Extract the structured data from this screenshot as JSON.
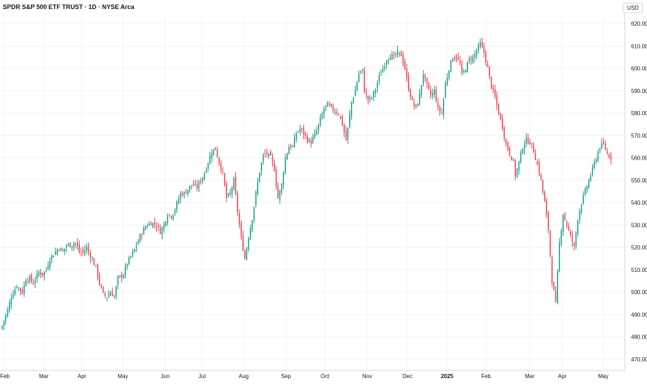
{
  "chart_data": {
    "type": "candlestick",
    "title": "SPDR S&P 500 ETF TRUST · 1D · NYSE Arca",
    "currency": "USD",
    "ylim": [
      465,
      625
    ],
    "y_ticks": [
      "620.00",
      "610.00",
      "600.00",
      "590.00",
      "580.00",
      "570.00",
      "560.00",
      "550.00",
      "540.00",
      "530.00",
      "520.00",
      "510.00",
      "500.00",
      "490.00",
      "480.00",
      "470.00"
    ],
    "x_ticks": [
      {
        "label": "Feb",
        "bold": false
      },
      {
        "label": "Mar",
        "bold": false
      },
      {
        "label": "Apr",
        "bold": false
      },
      {
        "label": "May",
        "bold": false
      },
      {
        "label": "Jun",
        "bold": false
      },
      {
        "label": "Jul",
        "bold": false
      },
      {
        "label": "Aug",
        "bold": false
      },
      {
        "label": "Sep",
        "bold": false
      },
      {
        "label": "Oct",
        "bold": false
      },
      {
        "label": "Nov",
        "bold": false
      },
      {
        "label": "Dec",
        "bold": false
      },
      {
        "label": "2025",
        "bold": true
      },
      {
        "label": "Feb",
        "bold": false
      },
      {
        "label": "Mar",
        "bold": false
      },
      {
        "label": "Apr",
        "bold": false
      },
      {
        "label": "May",
        "bold": false
      }
    ],
    "up_color": "#089981",
    "down_color": "#f23645",
    "grid": true,
    "close_path": [
      [
        0,
        485
      ],
      [
        3,
        492
      ],
      [
        5,
        498
      ],
      [
        8,
        503
      ],
      [
        11,
        500
      ],
      [
        13,
        506
      ],
      [
        15,
        506
      ],
      [
        17,
        504
      ],
      [
        20,
        509
      ],
      [
        22,
        508
      ],
      [
        24,
        510
      ],
      [
        26,
        515
      ],
      [
        29,
        518
      ],
      [
        31,
        520
      ],
      [
        33,
        518
      ],
      [
        35,
        521
      ],
      [
        37,
        521
      ],
      [
        40,
        522
      ],
      [
        42,
        518
      ],
      [
        44,
        518
      ],
      [
        46,
        520
      ],
      [
        48,
        516
      ],
      [
        51,
        511
      ],
      [
        53,
        504
      ],
      [
        55,
        499
      ],
      [
        57,
        498
      ],
      [
        59,
        500
      ],
      [
        61,
        498
      ],
      [
        63,
        506
      ],
      [
        66,
        508
      ],
      [
        68,
        513
      ],
      [
        70,
        516
      ],
      [
        72,
        519
      ],
      [
        75,
        525
      ],
      [
        77,
        528
      ],
      [
        79,
        530
      ],
      [
        81,
        531
      ],
      [
        84,
        530
      ],
      [
        86,
        527
      ],
      [
        88,
        530
      ],
      [
        90,
        535
      ],
      [
        92,
        534
      ],
      [
        94,
        537
      ],
      [
        97,
        544
      ],
      [
        99,
        544
      ],
      [
        101,
        546
      ],
      [
        103,
        548
      ],
      [
        106,
        547
      ],
      [
        108,
        550
      ],
      [
        110,
        553
      ],
      [
        112,
        558
      ],
      [
        114,
        563
      ],
      [
        116,
        564
      ],
      [
        118,
        558
      ],
      [
        120,
        553
      ],
      [
        122,
        542
      ],
      [
        124,
        544
      ],
      [
        126,
        550
      ],
      [
        128,
        536
      ],
      [
        130,
        524
      ],
      [
        132,
        515
      ],
      [
        134,
        525
      ],
      [
        136,
        533
      ],
      [
        138,
        544
      ],
      [
        140,
        554
      ],
      [
        142,
        561
      ],
      [
        144,
        562
      ],
      [
        146,
        560
      ],
      [
        148,
        555
      ],
      [
        150,
        542
      ],
      [
        152,
        548
      ],
      [
        154,
        560
      ],
      [
        156,
        565
      ],
      [
        158,
        565
      ],
      [
        160,
        571
      ],
      [
        162,
        573
      ],
      [
        164,
        571
      ],
      [
        166,
        568
      ],
      [
        168,
        567
      ],
      [
        171,
        572
      ],
      [
        173,
        577
      ],
      [
        175,
        582
      ],
      [
        177,
        584
      ],
      [
        179,
        582
      ],
      [
        181,
        581
      ],
      [
        183,
        580
      ],
      [
        185,
        575
      ],
      [
        187,
        568
      ],
      [
        188,
        573
      ],
      [
        190,
        585
      ],
      [
        192,
        590
      ],
      [
        194,
        598
      ],
      [
        196,
        599
      ],
      [
        197,
        590
      ],
      [
        199,
        586
      ],
      [
        201,
        587
      ],
      [
        203,
        591
      ],
      [
        205,
        596
      ],
      [
        207,
        600
      ],
      [
        209,
        604
      ],
      [
        211,
        606
      ],
      [
        213,
        605
      ],
      [
        215,
        607
      ],
      [
        217,
        606
      ],
      [
        219,
        600
      ],
      [
        221,
        591
      ],
      [
        223,
        585
      ],
      [
        225,
        582
      ],
      [
        227,
        588
      ],
      [
        229,
        598
      ],
      [
        231,
        592
      ],
      [
        233,
        588
      ],
      [
        235,
        590
      ],
      [
        237,
        582
      ],
      [
        239,
        580
      ],
      [
        241,
        593
      ],
      [
        243,
        600
      ],
      [
        245,
        605
      ],
      [
        247,
        605
      ],
      [
        249,
        602
      ],
      [
        250,
        597
      ],
      [
        252,
        600
      ],
      [
        254,
        604
      ],
      [
        256,
        605
      ],
      [
        258,
        608
      ],
      [
        260,
        611
      ],
      [
        262,
        607
      ],
      [
        264,
        600
      ],
      [
        266,
        592
      ],
      [
        268,
        587
      ],
      [
        270,
        580
      ],
      [
        272,
        574
      ],
      [
        274,
        566
      ],
      [
        276,
        562
      ],
      [
        278,
        558
      ],
      [
        279,
        552
      ],
      [
        281,
        558
      ],
      [
        283,
        565
      ],
      [
        285,
        568
      ],
      [
        287,
        567
      ],
      [
        289,
        563
      ],
      [
        291,
        557
      ],
      [
        293,
        550
      ],
      [
        295,
        540
      ],
      [
        297,
        528
      ],
      [
        299,
        505
      ],
      [
        301,
        495
      ],
      [
        303,
        522
      ],
      [
        305,
        535
      ],
      [
        307,
        530
      ],
      [
        309,
        525
      ],
      [
        311,
        520
      ],
      [
        313,
        533
      ],
      [
        315,
        540
      ],
      [
        317,
        545
      ],
      [
        319,
        550
      ],
      [
        321,
        555
      ],
      [
        323,
        560
      ],
      [
        325,
        565
      ],
      [
        327,
        566
      ],
      [
        329,
        562
      ],
      [
        331,
        560
      ]
    ],
    "last_index": 331
  }
}
